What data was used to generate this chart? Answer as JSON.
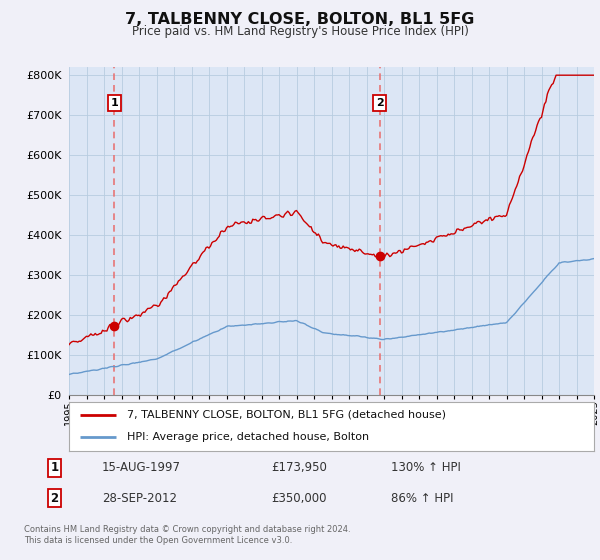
{
  "title": "7, TALBENNY CLOSE, BOLTON, BL1 5FG",
  "subtitle": "Price paid vs. HM Land Registry's House Price Index (HPI)",
  "hpi_label": "HPI: Average price, detached house, Bolton",
  "property_label": "7, TALBENNY CLOSE, BOLTON, BL1 5FG (detached house)",
  "transaction1_date": "15-AUG-1997",
  "transaction1_price": 173950,
  "transaction1_hpi": "130% ↑ HPI",
  "transaction2_date": "28-SEP-2012",
  "transaction2_price": 350000,
  "transaction2_hpi": "86% ↑ HPI",
  "background_color": "#f0f0f8",
  "plot_bg_color": "#dce6f5",
  "grid_color": "#b8cce0",
  "red_line_color": "#cc0000",
  "blue_line_color": "#6699cc",
  "dashed_line_color": "#e87070",
  "marker_color": "#cc0000",
  "footnote": "Contains HM Land Registry data © Crown copyright and database right 2024.\nThis data is licensed under the Open Government Licence v3.0.",
  "ylim": [
    0,
    820000
  ],
  "yticks": [
    0,
    100000,
    200000,
    300000,
    400000,
    500000,
    600000,
    700000,
    800000
  ],
  "ytick_labels": [
    "£0",
    "£100K",
    "£200K",
    "£300K",
    "£400K",
    "£500K",
    "£600K",
    "£700K",
    "£800K"
  ],
  "xstart_year": 1995,
  "xend_year": 2025,
  "transaction1_year": 1997.62,
  "transaction2_year": 2012.75,
  "transaction1_value": 173950,
  "transaction2_value": 350000
}
